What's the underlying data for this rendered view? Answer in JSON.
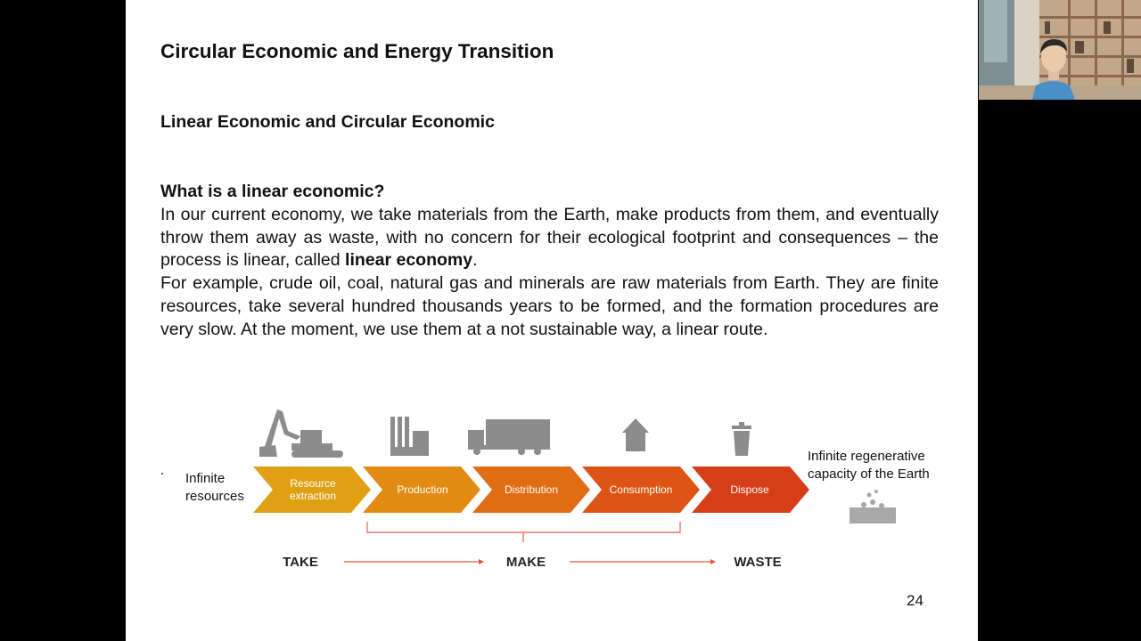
{
  "slide": {
    "title": "Circular Economic and Energy Transition",
    "subtitle": "Linear Economic and Circular Economic",
    "question": "What is a linear economic?",
    "para1_pre": "In our current economy, we take materials from the Earth, make products from them, and eventually throw them away as waste, with no concern for their ecological footprint and consequences – the process is linear, called ",
    "para1_bold": "linear economy",
    "para1_post": ".",
    "para2": "For example, crude oil, coal, natural gas and minerals are raw materials from Earth. They are finite resources, take several hundred thousands years to be formed, and the formation procedures are very slow. At the moment, we use them at a not sustainable way, a linear route.",
    "page_number": "24"
  },
  "diagram": {
    "left_label_line1": "Infinite",
    "left_label_line2": "resources",
    "right_label_line1": "Infinite regenerative",
    "right_label_line2": "capacity of the Earth",
    "stages": [
      {
        "line1": "Resource",
        "line2": "extraction",
        "color": "#e0a013",
        "icon": "excavator-icon"
      },
      {
        "line1": "Production",
        "line2": "",
        "color": "#e28b12",
        "icon": "factory-icon"
      },
      {
        "line1": "Distribution",
        "line2": "",
        "color": "#e06c14",
        "icon": "truck-icon"
      },
      {
        "line1": "Consumption",
        "line2": "",
        "color": "#dc5514",
        "icon": "house-icon"
      },
      {
        "line1": "Dispose",
        "line2": "",
        "color": "#d63e17",
        "icon": "trash-can-icon"
      }
    ],
    "phases": [
      "TAKE",
      "MAKE",
      "WASTE"
    ],
    "arrow_color": "#e05a3a",
    "bracket_color": "#e07a6a"
  }
}
